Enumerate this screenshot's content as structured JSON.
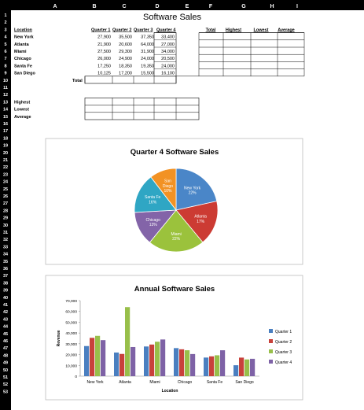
{
  "spreadsheet": {
    "column_headers": [
      "A",
      "B",
      "C",
      "D",
      "E",
      "F",
      "G",
      "H",
      "I"
    ],
    "row_numbers": [
      "1",
      "2",
      "3",
      "4",
      "5",
      "6",
      "7",
      "8",
      "9",
      "10",
      "11",
      "12",
      "13",
      "14",
      "15",
      "16",
      "17",
      "18",
      "19",
      "20",
      "21",
      "22",
      "23",
      "24",
      "25",
      "26",
      "27",
      "28",
      "29",
      "30",
      "31",
      "32",
      "33",
      "34",
      "35",
      "36",
      "37",
      "38",
      "39",
      "40",
      "41",
      "42",
      "43",
      "44",
      "45",
      "46",
      "47",
      "48",
      "49",
      "50",
      "51",
      "52",
      "53"
    ],
    "title": "Software Sales",
    "header_row": [
      "Location",
      "Quarter 1",
      "Quarter 2",
      "Quarter 3",
      "Quarter 4",
      "Total",
      "Highest",
      "Lowest",
      "Average"
    ],
    "data_rows": [
      {
        "location": "New York",
        "q1": "27,900",
        "q2": "35,500",
        "q3": "37,350",
        "q4": "33,400"
      },
      {
        "location": "Atlanta",
        "q1": "21,900",
        "q2": "20,600",
        "q3": "64,000",
        "q4": "27,000"
      },
      {
        "location": "Miami",
        "q1": "27,500",
        "q2": "29,300",
        "q3": "31,900",
        "q4": "34,000"
      },
      {
        "location": "Chicago",
        "q1": "26,000",
        "q2": "24,900",
        "q3": "24,000",
        "q4": "20,500"
      },
      {
        "location": "Santa Fe",
        "q1": "17,250",
        "q2": "18,350",
        "q3": "19,350",
        "q4": "24,000"
      },
      {
        "location": "San Diego",
        "q1": "10,125",
        "q2": "17,200",
        "q3": "15,500",
        "q4": "16,100"
      }
    ],
    "total_label": "Total",
    "summary_labels": [
      "Highest",
      "Lowest",
      "Average"
    ],
    "colors": {
      "header_bg": "#000000",
      "header_text": "#ffffff",
      "grid": "#000000"
    }
  },
  "chart_data": [
    {
      "type": "pie",
      "title": "Quarter 4 Software Sales",
      "categories": [
        "New York",
        "Atlanta",
        "Miami",
        "Chicago",
        "Santa Fe",
        "San Diego"
      ],
      "values": [
        33400,
        27000,
        34000,
        20500,
        24000,
        16100
      ],
      "labels": [
        {
          "name": "New York",
          "pct": "22%"
        },
        {
          "name": "Atlanta",
          "pct": "17%"
        },
        {
          "name": "Miami",
          "pct": "22%"
        },
        {
          "name": "Chicago",
          "pct": "13%"
        },
        {
          "name": "Santa Fe",
          "pct": "16%"
        },
        {
          "name": "San Diego",
          "pct": "10%"
        }
      ],
      "colors": [
        "#4a86c8",
        "#cc3b33",
        "#9bc23c",
        "#8364a8",
        "#2fa6c4",
        "#f29224"
      ]
    },
    {
      "type": "bar",
      "title": "Annual Software Sales",
      "categories": [
        "New York",
        "Atlanta",
        "Miami",
        "Chicago",
        "Santa Fe",
        "San Diego"
      ],
      "series": [
        {
          "name": "Quarter 1",
          "values": [
            27900,
            21900,
            27500,
            26000,
            17250,
            10125
          ],
          "color": "#4a7fc0"
        },
        {
          "name": "Quarter 2",
          "values": [
            35500,
            20600,
            29300,
            24900,
            18350,
            17200
          ],
          "color": "#c8413b"
        },
        {
          "name": "Quarter 3",
          "values": [
            37350,
            64000,
            31900,
            24000,
            19350,
            15500
          ],
          "color": "#98bf4a"
        },
        {
          "name": "Quarter 4",
          "values": [
            33400,
            27000,
            34000,
            20500,
            24000,
            16100
          ],
          "color": "#7e62a6"
        }
      ],
      "xlabel": "Location",
      "ylabel": "Revenue",
      "ylim": [
        0,
        70000
      ],
      "yticks": [
        "0",
        "10,000",
        "20,000",
        "30,000",
        "40,000",
        "50,000",
        "60,000",
        "70,000"
      ],
      "grid": false,
      "legend": "right"
    }
  ]
}
